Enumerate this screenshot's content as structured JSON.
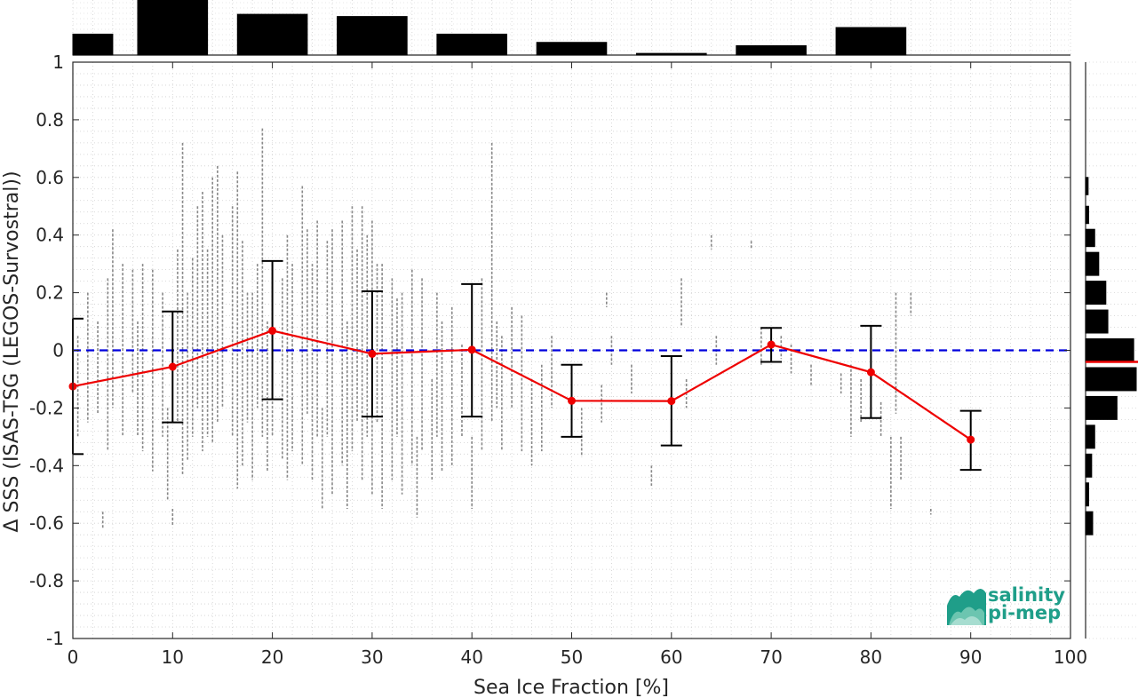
{
  "chart_data": {
    "type": "line",
    "xlabel": "Sea Ice Fraction [%]",
    "ylabel": "Δ SSS (ISAS-TSG (LEGOS-Survostral))",
    "xlim": [
      0,
      100
    ],
    "ylim": [
      -1,
      1
    ],
    "xticks": [
      0,
      10,
      20,
      30,
      40,
      50,
      60,
      70,
      80,
      90,
      100
    ],
    "yticks": [
      -1,
      -0.8,
      -0.6,
      -0.4,
      -0.2,
      0,
      0.2,
      0.4,
      0.6,
      0.8,
      1
    ],
    "ytick_labels": [
      "-1",
      "-0.8",
      "-0.6",
      "-0.4",
      "-0.2",
      "0",
      "0.2",
      "0.4",
      "0.6",
      "0.8",
      "1"
    ],
    "grid": true,
    "zero_line": {
      "y": 0,
      "color": "#0000dd",
      "style": "dashed"
    },
    "series": [
      {
        "color": "#ee0000",
        "x": [
          0,
          10,
          20,
          30,
          40,
          50,
          60,
          70,
          80,
          90
        ],
        "y": [
          -0.125,
          -0.057,
          0.068,
          -0.012,
          0.002,
          -0.175,
          -0.176,
          0.02,
          -0.076,
          -0.31
        ],
        "err_low": [
          -0.36,
          -0.25,
          -0.17,
          -0.23,
          -0.23,
          -0.3,
          -0.33,
          -0.04,
          -0.235,
          -0.415
        ],
        "err_high": [
          0.11,
          0.135,
          0.31,
          0.205,
          0.23,
          -0.05,
          -0.02,
          0.078,
          0.085,
          -0.21
        ]
      }
    ],
    "scatter_columns": [
      {
        "x": 0.5,
        "ymin": -0.3,
        "ymax": 0.05
      },
      {
        "x": 1.5,
        "ymin": -0.25,
        "ymax": 0.2
      },
      {
        "x": 2.5,
        "ymin": -0.22,
        "ymax": 0.1
      },
      {
        "x": 3,
        "ymin": -0.62,
        "ymax": -0.56
      },
      {
        "x": 3.5,
        "ymin": -0.35,
        "ymax": 0.25
      },
      {
        "x": 4,
        "ymin": -0.2,
        "ymax": 0.42
      },
      {
        "x": 5,
        "ymin": -0.3,
        "ymax": 0.3
      },
      {
        "x": 6,
        "ymin": -0.15,
        "ymax": 0.28
      },
      {
        "x": 6.5,
        "ymin": -0.3,
        "ymax": 0.1
      },
      {
        "x": 7,
        "ymin": -0.35,
        "ymax": 0.3
      },
      {
        "x": 8,
        "ymin": -0.42,
        "ymax": 0.28
      },
      {
        "x": 9,
        "ymin": -0.3,
        "ymax": 0.2
      },
      {
        "x": 9.5,
        "ymin": -0.52,
        "ymax": -0.2
      },
      {
        "x": 10,
        "ymin": -0.61,
        "ymax": -0.55
      },
      {
        "x": 10.5,
        "ymin": -0.25,
        "ymax": 0.35
      },
      {
        "x": 11,
        "ymin": -0.43,
        "ymax": 0.72
      },
      {
        "x": 11.5,
        "ymin": -0.38,
        "ymax": 0.2
      },
      {
        "x": 12,
        "ymin": -0.3,
        "ymax": 0.32
      },
      {
        "x": 12.5,
        "ymin": -0.2,
        "ymax": 0.5
      },
      {
        "x": 13,
        "ymin": -0.35,
        "ymax": 0.55
      },
      {
        "x": 13.5,
        "ymin": -0.3,
        "ymax": 0.35
      },
      {
        "x": 14,
        "ymin": -0.32,
        "ymax": 0.6
      },
      {
        "x": 14.5,
        "ymin": -0.25,
        "ymax": 0.64
      },
      {
        "x": 15,
        "ymin": -0.2,
        "ymax": 0.4
      },
      {
        "x": 16,
        "ymin": -0.3,
        "ymax": 0.5
      },
      {
        "x": 16.5,
        "ymin": -0.48,
        "ymax": 0.62
      },
      {
        "x": 17,
        "ymin": -0.4,
        "ymax": 0.38
      },
      {
        "x": 17.5,
        "ymin": -0.25,
        "ymax": 0.2
      },
      {
        "x": 18,
        "ymin": -0.45,
        "ymax": 0.2
      },
      {
        "x": 18.5,
        "ymin": -0.2,
        "ymax": 0.3
      },
      {
        "x": 19,
        "ymin": -0.3,
        "ymax": 0.77
      },
      {
        "x": 19.5,
        "ymin": -0.42,
        "ymax": 0.1
      },
      {
        "x": 20,
        "ymin": -0.3,
        "ymax": 0.3
      },
      {
        "x": 21,
        "ymin": -0.38,
        "ymax": 0.25
      },
      {
        "x": 21.5,
        "ymin": -0.45,
        "ymax": 0.4
      },
      {
        "x": 22,
        "ymin": -0.35,
        "ymax": 0.3
      },
      {
        "x": 23,
        "ymin": -0.4,
        "ymax": 0.57
      },
      {
        "x": 23.5,
        "ymin": -0.22,
        "ymax": 0.42
      },
      {
        "x": 24,
        "ymin": -0.45,
        "ymax": 0.3
      },
      {
        "x": 24.5,
        "ymin": -0.3,
        "ymax": 0.45
      },
      {
        "x": 25,
        "ymin": -0.55,
        "ymax": -0.2
      },
      {
        "x": 25.5,
        "ymin": -0.3,
        "ymax": 0.38
      },
      {
        "x": 26,
        "ymin": -0.5,
        "ymax": 0.42
      },
      {
        "x": 27,
        "ymin": -0.4,
        "ymax": 0.45
      },
      {
        "x": 27.5,
        "ymin": -0.55,
        "ymax": 0.1
      },
      {
        "x": 28,
        "ymin": -0.35,
        "ymax": 0.5
      },
      {
        "x": 28.5,
        "ymin": -0.25,
        "ymax": 0.35
      },
      {
        "x": 29,
        "ymin": -0.45,
        "ymax": 0.5
      },
      {
        "x": 29.5,
        "ymin": -0.3,
        "ymax": 0.4
      },
      {
        "x": 30,
        "ymin": -0.5,
        "ymax": 0.45
      },
      {
        "x": 30.5,
        "ymin": -0.25,
        "ymax": 0.3
      },
      {
        "x": 31,
        "ymin": -0.55,
        "ymax": 0.3
      },
      {
        "x": 32,
        "ymin": -0.45,
        "ymax": 0.25
      },
      {
        "x": 32.5,
        "ymin": -0.3,
        "ymax": 0.18
      },
      {
        "x": 33,
        "ymin": -0.5,
        "ymax": 0.2
      },
      {
        "x": 34,
        "ymin": -0.4,
        "ymax": 0.28
      },
      {
        "x": 34.5,
        "ymin": -0.58,
        "ymax": -0.3
      },
      {
        "x": 35,
        "ymin": -0.35,
        "ymax": 0.25
      },
      {
        "x": 36,
        "ymin": -0.45,
        "ymax": -0.1
      },
      {
        "x": 36.5,
        "ymin": -0.3,
        "ymax": 0.2
      },
      {
        "x": 37,
        "ymin": -0.42,
        "ymax": 0.1
      },
      {
        "x": 38,
        "ymin": -0.4,
        "ymax": 0.15
      },
      {
        "x": 39,
        "ymin": -0.3,
        "ymax": 0.02
      },
      {
        "x": 40,
        "ymin": -0.55,
        "ymax": -0.3
      },
      {
        "x": 41,
        "ymin": -0.35,
        "ymax": 0.25
      },
      {
        "x": 42,
        "ymin": -0.25,
        "ymax": 0.72
      },
      {
        "x": 42.5,
        "ymin": -0.2,
        "ymax": 0.1
      },
      {
        "x": 43,
        "ymin": -0.35,
        "ymax": 0.05
      },
      {
        "x": 44,
        "ymin": -0.2,
        "ymax": 0.15
      },
      {
        "x": 45,
        "ymin": -0.35,
        "ymax": 0.12
      },
      {
        "x": 46,
        "ymin": -0.4,
        "ymax": -0.1
      },
      {
        "x": 47,
        "ymin": -0.35,
        "ymax": -0.05
      },
      {
        "x": 48,
        "ymin": -0.2,
        "ymax": 0.05
      },
      {
        "x": 51,
        "ymin": -0.37,
        "ymax": -0.2
      },
      {
        "x": 53,
        "ymin": -0.25,
        "ymax": -0.12
      },
      {
        "x": 53.5,
        "ymin": 0.15,
        "ymax": 0.2
      },
      {
        "x": 54,
        "ymin": -0.05,
        "ymax": 0.05
      },
      {
        "x": 56,
        "ymin": -0.15,
        "ymax": -0.05
      },
      {
        "x": 58,
        "ymin": -0.47,
        "ymax": -0.4
      },
      {
        "x": 61,
        "ymin": 0.08,
        "ymax": 0.25
      },
      {
        "x": 61.5,
        "ymin": -0.2,
        "ymax": -0.1
      },
      {
        "x": 64,
        "ymin": 0.35,
        "ymax": 0.4
      },
      {
        "x": 64.5,
        "ymin": -0.05,
        "ymax": 0.05
      },
      {
        "x": 68,
        "ymin": 0.35,
        "ymax": 0.38
      },
      {
        "x": 69,
        "ymin": -0.05,
        "ymax": 0.08
      },
      {
        "x": 71,
        "ymin": -0.03,
        "ymax": 0.05
      },
      {
        "x": 72,
        "ymin": -0.08,
        "ymax": 0.02
      },
      {
        "x": 74,
        "ymin": -0.12,
        "ymax": -0.05
      },
      {
        "x": 77,
        "ymin": -0.15,
        "ymax": -0.08
      },
      {
        "x": 78,
        "ymin": -0.3,
        "ymax": -0.05
      },
      {
        "x": 79,
        "ymin": -0.25,
        "ymax": -0.1
      },
      {
        "x": 81,
        "ymin": -0.3,
        "ymax": -0.18
      },
      {
        "x": 82,
        "ymin": -0.55,
        "ymax": -0.3
      },
      {
        "x": 82.5,
        "ymin": -0.22,
        "ymax": 0.2
      },
      {
        "x": 83,
        "ymin": -0.45,
        "ymax": -0.3
      },
      {
        "x": 84,
        "ymin": 0.12,
        "ymax": 0.2
      },
      {
        "x": 86,
        "ymin": -0.57,
        "ymax": -0.55
      }
    ],
    "top_histogram": {
      "bins": [
        [
          0,
          4
        ],
        [
          6.5,
          13.5
        ],
        [
          16.5,
          23.5
        ],
        [
          26.5,
          33.5
        ],
        [
          36.5,
          43.5
        ],
        [
          46.5,
          53.5
        ],
        [
          56.5,
          63.5
        ],
        [
          66.5,
          73.5
        ],
        [
          76.5,
          83.5
        ]
      ],
      "heights": [
        0.38,
        1.0,
        0.74,
        0.7,
        0.38,
        0.23,
        0.03,
        0.17,
        0.5
      ]
    },
    "right_histogram": {
      "bins": [
        [
          0.54,
          0.6
        ],
        [
          0.44,
          0.5
        ],
        [
          0.36,
          0.42
        ],
        [
          0.26,
          0.34
        ],
        [
          0.16,
          0.24
        ],
        [
          0.06,
          0.14
        ],
        [
          -0.04,
          0.04
        ],
        [
          -0.14,
          -0.06
        ],
        [
          -0.24,
          -0.16
        ],
        [
          -0.34,
          -0.26
        ],
        [
          -0.44,
          -0.36
        ],
        [
          -0.54,
          -0.46
        ],
        [
          -0.64,
          -0.56
        ]
      ],
      "widths": [
        0.05,
        0.06,
        0.18,
        0.26,
        0.4,
        0.44,
        0.95,
        1.0,
        0.62,
        0.18,
        0.12,
        0.06,
        0.14
      ],
      "median": -0.04,
      "median_color": "#ee0000"
    }
  },
  "logo": {
    "line1": "salinity",
    "line2": "pi-mep"
  },
  "colors": {
    "series": "#ee0000",
    "zero_line": "#0000dd",
    "scatter": "#888888",
    "bars": "#000000",
    "logo": "#1f9e89"
  }
}
